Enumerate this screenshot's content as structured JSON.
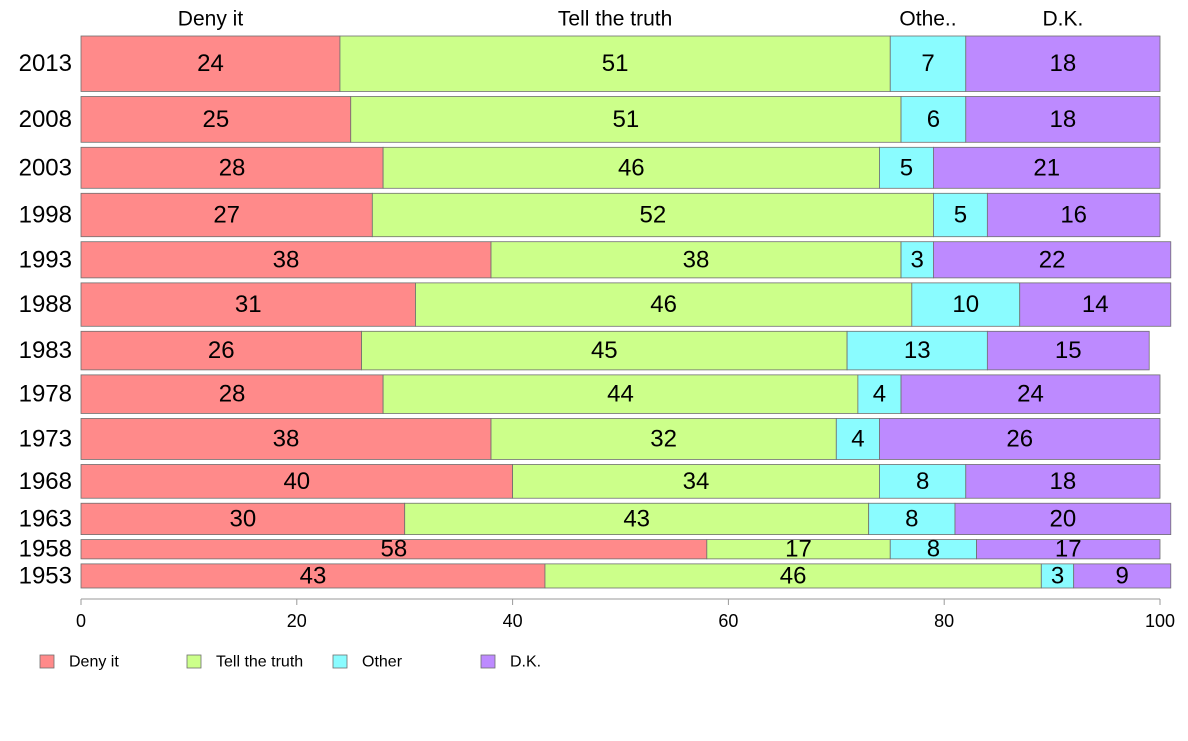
{
  "chart_data": {
    "type": "bar",
    "orientation": "horizontal",
    "stacked": true,
    "categories": [
      "2013",
      "2008",
      "2003",
      "1998",
      "1993",
      "1988",
      "1983",
      "1978",
      "1973",
      "1968",
      "1963",
      "1958",
      "1953"
    ],
    "series": [
      {
        "name": "Deny it",
        "color": "#ff8a8a",
        "values": [
          24,
          25,
          28,
          27,
          38,
          31,
          26,
          28,
          38,
          40,
          30,
          58,
          43
        ]
      },
      {
        "name": "Tell the truth",
        "color": "#ccff8a",
        "values": [
          51,
          51,
          46,
          52,
          38,
          46,
          45,
          44,
          32,
          34,
          43,
          17,
          46
        ]
      },
      {
        "name": "Other",
        "color": "#8afcff",
        "values": [
          7,
          6,
          5,
          5,
          3,
          10,
          13,
          4,
          4,
          8,
          8,
          8,
          3
        ]
      },
      {
        "name": "D.K.",
        "color": "#bd8aff",
        "values": [
          18,
          18,
          21,
          16,
          22,
          14,
          15,
          24,
          26,
          18,
          20,
          17,
          9
        ]
      }
    ],
    "column_headers": [
      "Deny it",
      "Tell the truth",
      "Othe..",
      "D.K."
    ],
    "xlim": [
      0,
      100
    ],
    "xticks": [
      "0",
      "20",
      "40",
      "60",
      "80",
      "100"
    ],
    "bar_widths_relative": [
      23,
      19,
      17,
      18,
      15,
      18,
      16,
      16,
      17,
      14,
      13,
      8,
      10
    ],
    "grid": false,
    "legend_position": "bottom-left"
  }
}
